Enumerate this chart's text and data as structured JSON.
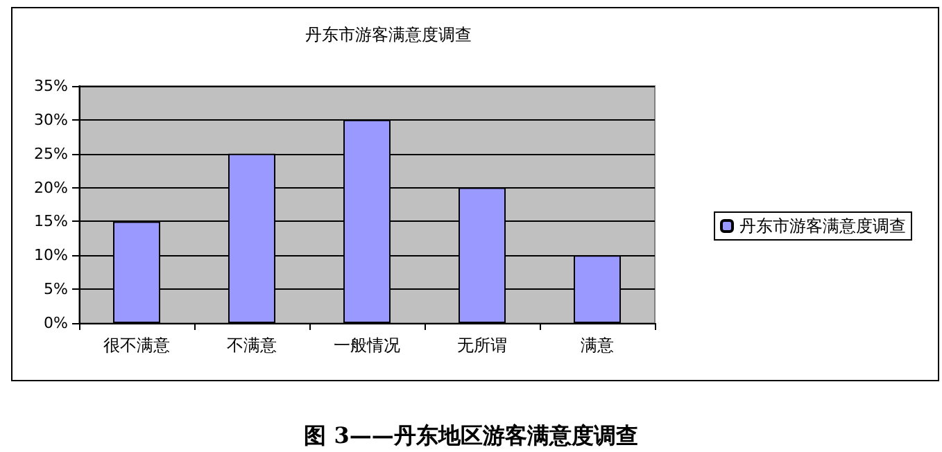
{
  "chart_data": {
    "type": "bar",
    "title": "丹东市游客满意度调查",
    "categories": [
      "很不满意",
      "不满意",
      "一般情况",
      "无所谓",
      "满意"
    ],
    "series": [
      {
        "name": "丹东市游客满意度调查",
        "color": "#9999ff",
        "values": [
          15,
          25,
          30,
          20,
          10
        ]
      }
    ],
    "ylim": [
      0,
      35
    ],
    "yticks": [
      {
        "value": 0,
        "label": "0%"
      },
      {
        "value": 5,
        "label": "5%"
      },
      {
        "value": 10,
        "label": "10%"
      },
      {
        "value": 15,
        "label": "15%"
      },
      {
        "value": 20,
        "label": "20%"
      },
      {
        "value": 25,
        "label": "25%"
      },
      {
        "value": 30,
        "label": "30%"
      },
      {
        "value": 35,
        "label": "35%"
      }
    ],
    "grid": "y",
    "legend": "right",
    "annotations": [
      "图 3——丹东地区游客满意度调查"
    ]
  }
}
